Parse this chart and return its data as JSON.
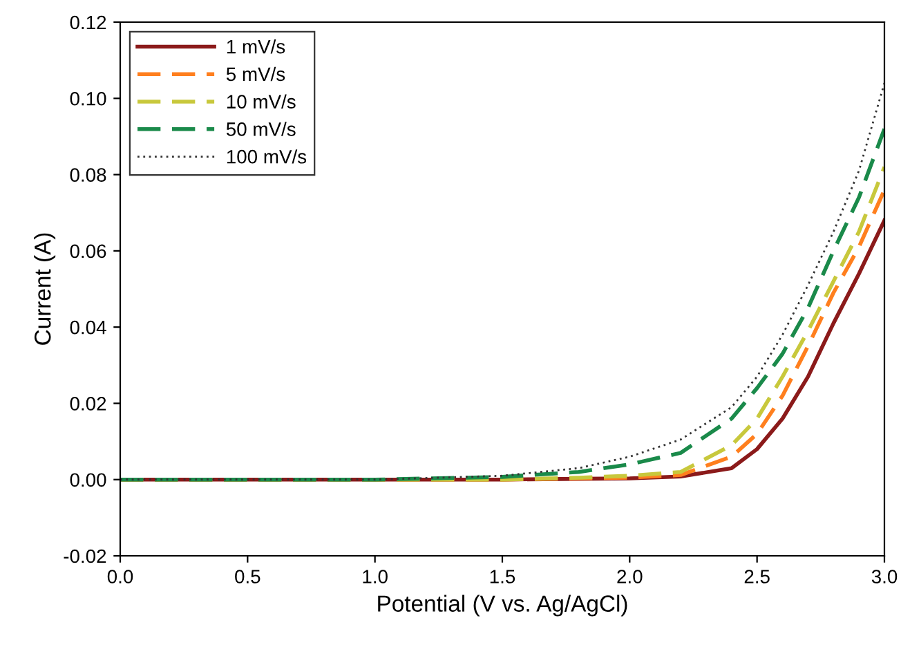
{
  "chart_data": {
    "type": "line",
    "xlabel": "Potential (V vs. Ag/AgCl)",
    "ylabel": "Current (A)",
    "xlim": [
      0,
      3
    ],
    "ylim": [
      -0.02,
      0.12
    ],
    "xticks": [
      {
        "value": 0,
        "label": "0.0"
      },
      {
        "value": 0.5,
        "label": "0.5"
      },
      {
        "value": 1,
        "label": "1.0"
      },
      {
        "value": 1.5,
        "label": "1.5"
      },
      {
        "value": 2,
        "label": "2.0"
      },
      {
        "value": 2.5,
        "label": "2.5"
      },
      {
        "value": 3,
        "label": "3.0"
      }
    ],
    "yticks": [
      {
        "value": -0.02,
        "label": "-0.02"
      },
      {
        "value": 0,
        "label": "0.00"
      },
      {
        "value": 0.02,
        "label": "0.02"
      },
      {
        "value": 0.04,
        "label": "0.04"
      },
      {
        "value": 0.06,
        "label": "0.06"
      },
      {
        "value": 0.08,
        "label": "0.08"
      },
      {
        "value": 0.1,
        "label": "0.10"
      },
      {
        "value": 0.12,
        "label": "0.12"
      }
    ],
    "x": [
      0,
      1.0,
      1.5,
      1.8,
      2.0,
      2.2,
      2.4,
      2.5,
      2.6,
      2.7,
      2.8,
      2.9,
      3.0
    ],
    "legend": "top left",
    "grid": false,
    "marker": "none",
    "series": [
      {
        "name": "1 mV/s",
        "color": "#8b1a1a",
        "line_style": "solid",
        "values": [
          0,
          0,
          0,
          0.0002,
          0.0003,
          0.0008,
          0.003,
          0.008,
          0.016,
          0.027,
          0.041,
          0.054,
          0.068
        ]
      },
      {
        "name": "5 mV/s",
        "color": "#ff7f1e",
        "line_style": "dashed",
        "values": [
          0,
          0,
          0,
          0.0003,
          0.0005,
          0.0012,
          0.006,
          0.012,
          0.022,
          0.035,
          0.049,
          0.061,
          0.076
        ]
      },
      {
        "name": "10 mV/s",
        "color": "#c8c83c",
        "line_style": "dashed",
        "values": [
          0,
          0,
          0,
          0.0005,
          0.001,
          0.002,
          0.009,
          0.016,
          0.027,
          0.039,
          0.052,
          0.065,
          0.082
        ]
      },
      {
        "name": "50 mV/s",
        "color": "#1a8a4a",
        "line_style": "dashed",
        "values": [
          0,
          0,
          0.0007,
          0.002,
          0.004,
          0.007,
          0.016,
          0.024,
          0.033,
          0.045,
          0.06,
          0.074,
          0.092
        ]
      },
      {
        "name": "100 mV/s",
        "color": "#333333",
        "line_style": "dotted",
        "values": [
          0,
          0,
          0.001,
          0.003,
          0.006,
          0.0105,
          0.019,
          0.027,
          0.038,
          0.051,
          0.065,
          0.081,
          0.104
        ]
      }
    ]
  }
}
